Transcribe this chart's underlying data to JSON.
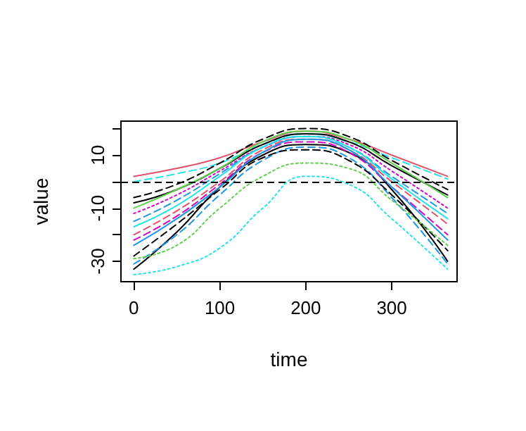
{
  "chart_data": {
    "type": "line",
    "xlabel": "time",
    "ylabel": "value",
    "x": [
      0,
      50,
      100,
      150,
      200,
      250,
      300,
      365
    ],
    "xlim": [
      -15,
      376
    ],
    "xticks": [
      0,
      100,
      200,
      300
    ],
    "ylim": [
      -37.7,
      22.8
    ],
    "yticks": [
      {
        "value": -30,
        "label": "-30"
      },
      {
        "value": -20,
        "label": null
      },
      {
        "value": -10,
        "label": "-10"
      },
      {
        "value": 0,
        "label": null
      },
      {
        "value": 10,
        "label": "10"
      },
      {
        "value": 20,
        "label": null
      }
    ],
    "grid": false,
    "marker": "none",
    "ref_lines": [
      {
        "axis": "y",
        "value": 0,
        "color": "#000000",
        "line_style": "dashed"
      }
    ],
    "series": [
      {
        "color": "#df536b",
        "line_style": "solid",
        "values": [
          2,
          5,
          9,
          15,
          19,
          16,
          10,
          2
        ]
      },
      {
        "color": "#28e2e5",
        "line_style": "dashed",
        "values": [
          0,
          3,
          7,
          14,
          18,
          15,
          9,
          1
        ]
      },
      {
        "color": "#000000",
        "line_style": "dashed",
        "values": [
          -6,
          -1,
          7,
          16,
          20,
          17,
          8,
          -3
        ]
      },
      {
        "color": "#000000",
        "line_style": "solid",
        "values": [
          -8,
          -3,
          5,
          14,
          18,
          15,
          6,
          -5
        ]
      },
      {
        "color": "#cd0bbc",
        "line_style": "dotted",
        "values": [
          -12,
          -5,
          4,
          13,
          17,
          14,
          4,
          -10
        ]
      },
      {
        "color": "#2297e6",
        "line_style": "dashed",
        "values": [
          -15,
          -7,
          3,
          13,
          17,
          13,
          2,
          -12
        ]
      },
      {
        "color": "#61d04f",
        "line_style": "solid",
        "values": [
          -10,
          -3,
          5,
          15,
          19,
          16,
          7,
          -6
        ]
      },
      {
        "color": "#df536b",
        "line_style": "dashed",
        "values": [
          -20,
          -11,
          0,
          12,
          16,
          12,
          0,
          -16
        ]
      },
      {
        "color": "#28e2e5",
        "line_style": "solid",
        "values": [
          -17,
          -9,
          2,
          13,
          17,
          13,
          1,
          -14
        ]
      },
      {
        "color": "#000000",
        "line_style": "solid",
        "values": [
          -33,
          -19,
          -2,
          10,
          14,
          11,
          -3,
          -30
        ]
      },
      {
        "color": "#2297e6",
        "line_style": "dashed",
        "values": [
          -31,
          -20,
          -5,
          8,
          13,
          9,
          -6,
          -31
        ]
      },
      {
        "color": "#000000",
        "line_style": "dashed",
        "values": [
          -28,
          -16,
          -3,
          9,
          12,
          8,
          -5,
          -26
        ]
      },
      {
        "color": "#61d04f",
        "line_style": "dotted",
        "values": [
          -29,
          -24,
          -10,
          2,
          7,
          5,
          -7,
          -24
        ]
      },
      {
        "color": "#28e2e5",
        "line_style": "dotted",
        "values": [
          -35,
          -32,
          -25,
          -10,
          2,
          -1,
          -14,
          -33
        ]
      },
      {
        "color": "#cd0bbc",
        "line_style": "dashed",
        "values": [
          -22,
          -13,
          -1,
          11,
          15,
          11,
          -2,
          -20
        ]
      },
      {
        "color": "#2297e6",
        "line_style": "solid",
        "values": [
          -24,
          -14,
          -2,
          11,
          16,
          12,
          -2,
          -22
        ]
      }
    ]
  }
}
